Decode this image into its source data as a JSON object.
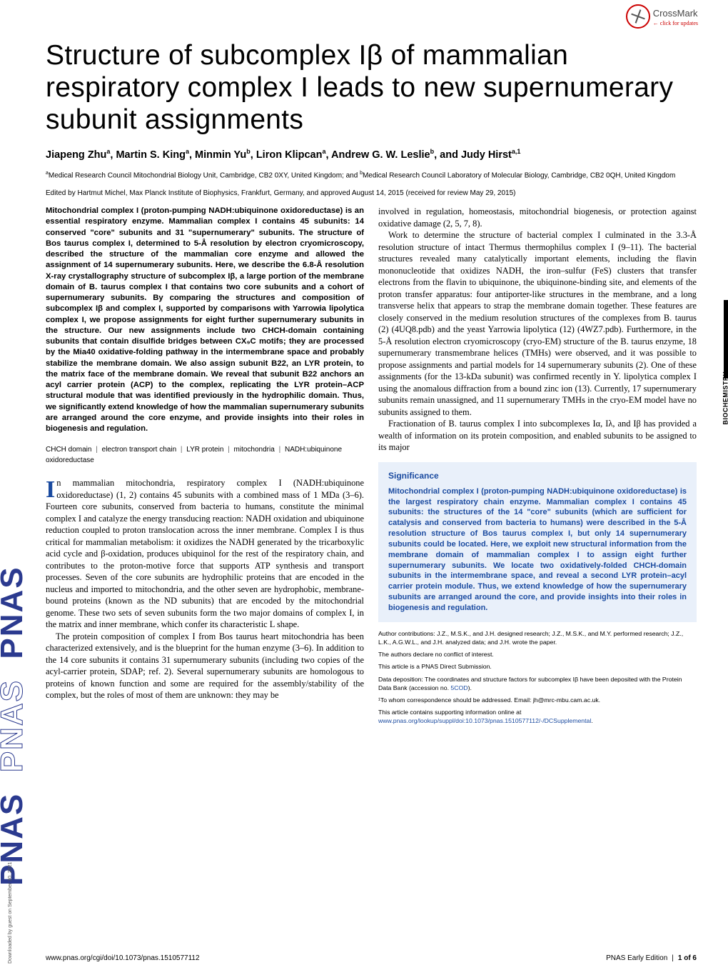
{
  "crossmark": {
    "label": "CrossMark",
    "sub": "← click for updates"
  },
  "pnas_logo": "PNAS PNAS PNAS",
  "download_text": "Downloaded by guest on September 30, 2021",
  "biochemistry_label": "BIOCHEMISTRY",
  "title": "Structure of subcomplex Iβ of mammalian respiratory complex I leads to new supernumerary subunit assignments",
  "authors_html": "Jiapeng Zhu<sup>a</sup>, Martin S. King<sup>a</sup>, Minmin Yu<sup>b</sup>, Liron Klipcan<sup>a</sup>, Andrew G. W. Leslie<sup>b</sup>, and Judy Hirst<sup>a,1</sup>",
  "affiliations_html": "<sup>a</sup>Medical Research Council Mitochondrial Biology Unit, Cambridge, CB2 0XY, United Kingdom; and <sup>b</sup>Medical Research Council Laboratory of Molecular Biology, Cambridge, CB2 0QH, United Kingdom",
  "edited": "Edited by Hartmut Michel, Max Planck Institute of Biophysics, Frankfurt, Germany, and approved August 14, 2015 (received for review May 29, 2015)",
  "abstract": "Mitochondrial complex I (proton-pumping NADH:ubiquinone oxidoreductase) is an essential respiratory enzyme. Mammalian complex I contains 45 subunits: 14 conserved \"core\" subunits and 31 \"supernumerary\" subunits. The structure of Bos taurus complex I, determined to 5-Å resolution by electron cryomicroscopy, described the structure of the mammalian core enzyme and allowed the assignment of 14 supernumerary subunits. Here, we describe the 6.8-Å resolution X-ray crystallography structure of subcomplex Iβ, a large portion of the membrane domain of B. taurus complex I that contains two core subunits and a cohort of supernumerary subunits. By comparing the structures and composition of subcomplex Iβ and complex I, supported by comparisons with Yarrowia lipolytica complex I, we propose assignments for eight further supernumerary subunits in the structure. Our new assignments include two CHCH-domain containing subunits that contain disulfide bridges between CX₉C motifs; they are processed by the Mia40 oxidative-folding pathway in the intermembrane space and probably stabilize the membrane domain. We also assign subunit B22, an LYR protein, to the matrix face of the membrane domain. We reveal that subunit B22 anchors an acyl carrier protein (ACP) to the complex, replicating the LYR protein–ACP structural module that was identified previously in the hydrophilic domain. Thus, we significantly extend knowledge of how the mammalian supernumerary subunits are arranged around the core enzyme, and provide insights into their roles in biogenesis and regulation.",
  "keywords": [
    "CHCH domain",
    "electron transport chain",
    "LYR protein",
    "mitochondria",
    "NADH:ubiquinone oxidoreductase"
  ],
  "intro_p1": "n mammalian mitochondria, respiratory complex I (NADH:ubiquinone oxidoreductase) (1, 2) contains 45 subunits with a combined mass of 1 MDa (3–6). Fourteen core subunits, conserved from bacteria to humans, constitute the minimal complex I and catalyze the energy transducing reaction: NADH oxidation and ubiquinone reduction coupled to proton translocation across the inner membrane. Complex I is thus critical for mammalian metabolism: it oxidizes the NADH generated by the tricarboxylic acid cycle and β-oxidation, produces ubiquinol for the rest of the respiratory chain, and contributes to the proton-motive force that supports ATP synthesis and transport processes. Seven of the core subunits are hydrophilic proteins that are encoded in the nucleus and imported to mitochondria, and the other seven are hydrophobic, membrane-bound proteins (known as the ND subunits) that are encoded by the mitochondrial genome. These two sets of seven subunits form the two major domains of complex I, in the matrix and inner membrane, which confer its characteristic L shape.",
  "intro_p2": "The protein composition of complex I from Bos taurus heart mitochondria has been characterized extensively, and is the blueprint for the human enzyme (3–6). In addition to the 14 core subunits it contains 31 supernumerary subunits (including two copies of the acyl-carrier protein, SDAP; ref. 2). Several supernumerary subunits are homologous to proteins of known function and some are required for the assembly/stability of the complex, but the roles of most of them are unknown: they may be",
  "col2_p1": "involved in regulation, homeostasis, mitochondrial biogenesis, or protection against oxidative damage (2, 5, 7, 8).",
  "col2_p2": "Work to determine the structure of bacterial complex I culminated in the 3.3-Å resolution structure of intact Thermus thermophilus complex I (9–11). The bacterial structures revealed many catalytically important elements, including the flavin mononucleotide that oxidizes NADH, the iron–sulfur (FeS) clusters that transfer electrons from the flavin to ubiquinone, the ubiquinone-binding site, and elements of the proton transfer apparatus: four antiporter-like structures in the membrane, and a long transverse helix that appears to strap the membrane domain together. These features are closely conserved in the medium resolution structures of the complexes from B. taurus (2) (4UQ8.pdb) and the yeast Yarrowia lipolytica (12) (4WZ7.pdb). Furthermore, in the 5-Å resolution electron cryomicroscopy (cryo-EM) structure of the B. taurus enzyme, 18 supernumerary transmembrane helices (TMHs) were observed, and it was possible to propose assignments and partial models for 14 supernumerary subunits (2). One of these assignments (for the 13-kDa subunit) was confirmed recently in Y. lipolytica complex I using the anomalous diffraction from a bound zinc ion (13). Currently, 17 supernumerary subunits remain unassigned, and 11 supernumerary TMHs in the cryo-EM model have no subunits assigned to them.",
  "col2_p3": "Fractionation of B. taurus complex I into subcomplexes Iα, Iλ, and Iβ has provided a wealth of information on its protein composition, and enabled subunits to be assigned to its major",
  "significance": {
    "title": "Significance",
    "body": "Mitochondrial complex I (proton-pumping NADH:ubiquinone oxidoreductase) is the largest respiratory chain enzyme. Mammalian complex I contains 45 subunits: the structures of the 14 \"core\" subunits (which are sufficient for catalysis and conserved from bacteria to humans) were described in the 5-Å resolution structure of Bos taurus complex I, but only 14 supernumerary subunits could be located. Here, we exploit new structural information from the membrane domain of mammalian complex I to assign eight further supernumerary subunits. We locate two oxidatively-folded CHCH-domain subunits in the intermembrane space, and reveal a second LYR protein–acyl carrier protein module. Thus, we extend knowledge of how the supernumerary subunits are arranged around the core, and provide insights into their roles in biogenesis and regulation."
  },
  "footnotes": {
    "contrib": "Author contributions: J.Z., M.S.K., and J.H. designed research; J.Z., M.S.K., and M.Y. performed research; J.Z., L.K., A.G.W.L., and J.H. analyzed data; and J.H. wrote the paper.",
    "conflict": "The authors declare no conflict of interest.",
    "submission": "This article is a PNAS Direct Submission.",
    "deposition": "Data deposition: The coordinates and structure factors for subcomplex Iβ have been deposited with the Protein Data Bank (accession no. ",
    "deposition_link": "5COD",
    "deposition_end": ").",
    "corresp": "¹To whom correspondence should be addressed. Email: jh@mrc-mbu.cam.ac.uk.",
    "si": "This article contains supporting information online at ",
    "si_link": "www.pnas.org/lookup/suppl/doi:10.1073/pnas.1510577112/-/DCSupplemental",
    "si_end": "."
  },
  "footer": {
    "doi": "www.pnas.org/cgi/doi/10.1073/pnas.1510577112",
    "right_journal": "PNAS Early Edition",
    "right_page": "1 of 6"
  },
  "colors": {
    "link": "#1b4ba0",
    "sigbg": "#e9f0fa",
    "crossmark_red": "#cc0000",
    "pnas_blue": "#2b3a8f"
  },
  "fonts": {
    "title_size": 39,
    "author_size": 14.5,
    "abstract_size": 11.3,
    "body_size": 12.4,
    "footnote_size": 8.7
  }
}
